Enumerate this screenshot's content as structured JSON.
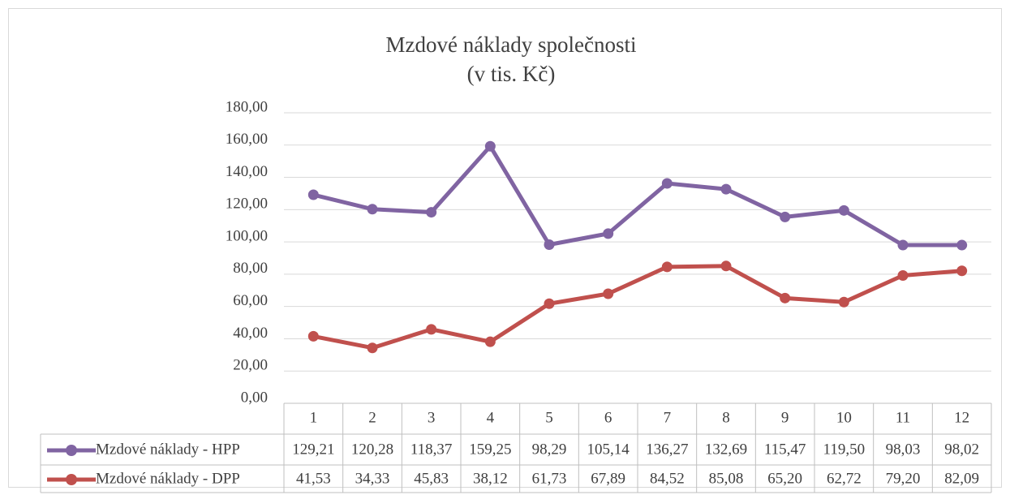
{
  "chart_data": {
    "type": "line",
    "title": "Mzdové náklady společnosti",
    "subtitle": "(v tis. Kč)",
    "categories": [
      "1",
      "2",
      "3",
      "4",
      "5",
      "6",
      "7",
      "8",
      "9",
      "10",
      "11",
      "12"
    ],
    "series": [
      {
        "name": "Mzdové náklady - HPP",
        "color": "#8064a2",
        "values": [
          129.21,
          120.28,
          118.37,
          159.25,
          98.29,
          105.14,
          136.27,
          132.69,
          115.47,
          119.5,
          98.03,
          98.02
        ],
        "value_labels": [
          "129,21",
          "120,28",
          "118,37",
          "159,25",
          "98,29",
          "105,14",
          "136,27",
          "132,69",
          "115,47",
          "119,50",
          "98,03",
          "98,02"
        ]
      },
      {
        "name": "Mzdové náklady - DPP",
        "color": "#c0504d",
        "values": [
          41.53,
          34.33,
          45.83,
          38.12,
          61.73,
          67.89,
          84.52,
          85.08,
          65.2,
          62.72,
          79.2,
          82.09
        ],
        "value_labels": [
          "41,53",
          "34,33",
          "45,83",
          "38,12",
          "61,73",
          "67,89",
          "84,52",
          "85,08",
          "65,20",
          "62,72",
          "79,20",
          "82,09"
        ]
      }
    ],
    "ylim": [
      0,
      180
    ],
    "yticks": [
      {
        "value": 0,
        "label": "0,00"
      },
      {
        "value": 20,
        "label": "20,00"
      },
      {
        "value": 40,
        "label": "40,00"
      },
      {
        "value": 60,
        "label": "60,00"
      },
      {
        "value": 80,
        "label": "80,00"
      },
      {
        "value": 100,
        "label": "100,00"
      },
      {
        "value": 120,
        "label": "120,00"
      },
      {
        "value": 140,
        "label": "140,00"
      },
      {
        "value": 160,
        "label": "160,00"
      },
      {
        "value": 180,
        "label": "180,00"
      }
    ],
    "grid": true
  }
}
